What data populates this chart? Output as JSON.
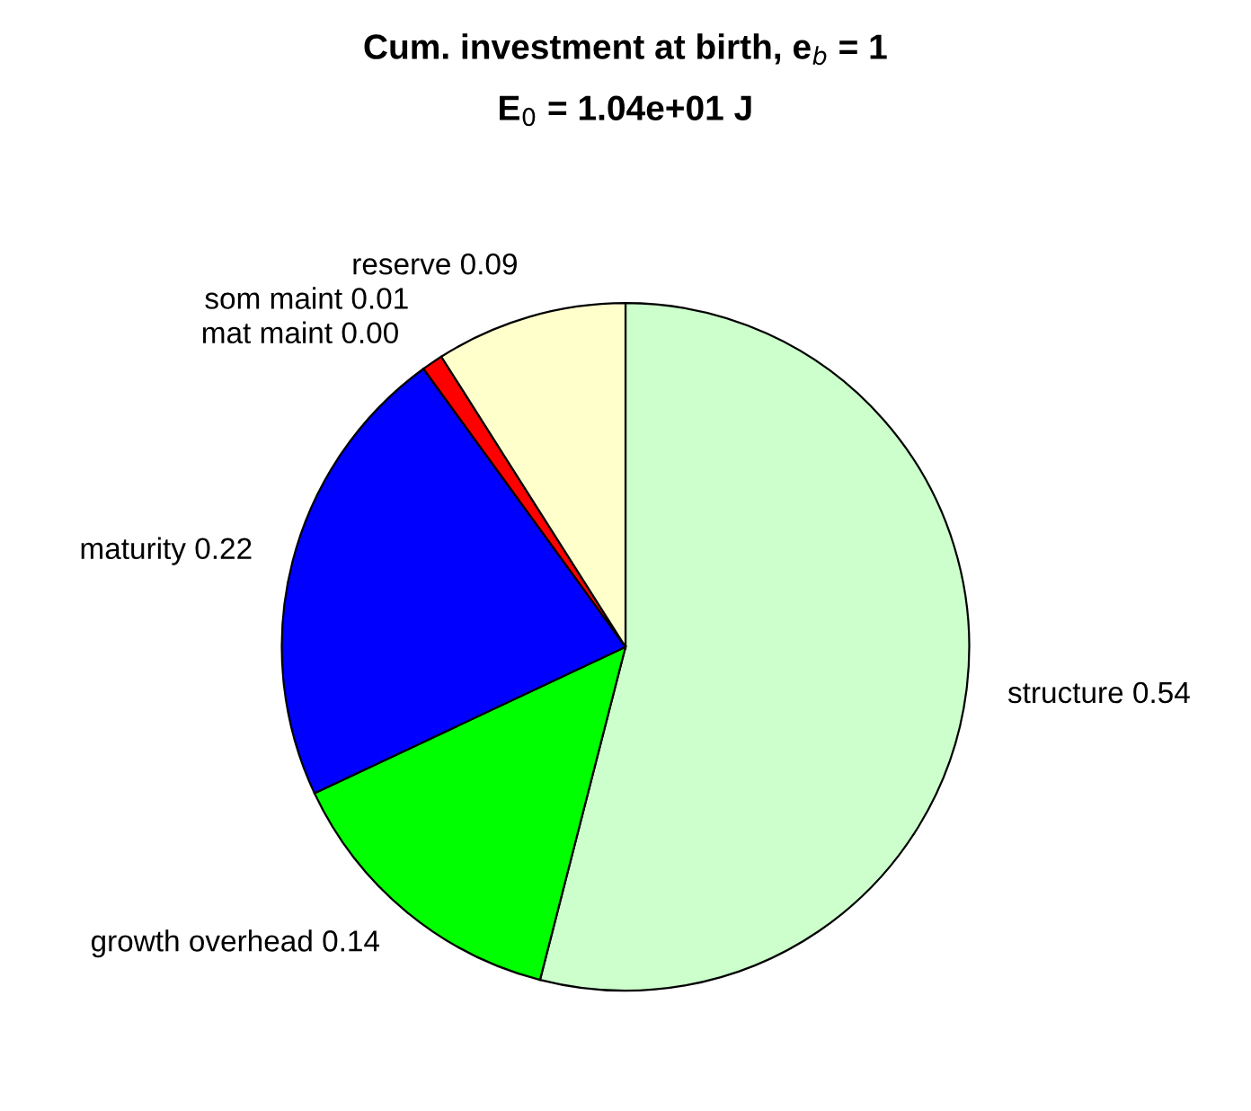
{
  "chart_data": {
    "type": "pie",
    "title": "Cum. investment at birth, e$_{b}$ = 1",
    "subtitle": "E$_{0}$ = 1.04e+01 J",
    "categories": [
      "structure",
      "growth overhead",
      "maturity",
      "mat maint",
      "som maint",
      "reserve"
    ],
    "values": [
      0.54,
      0.14,
      0.22,
      0.0,
      0.01,
      0.09
    ],
    "value_labels": [
      "0.54",
      "0.14",
      "0.22",
      "0.00",
      "0.01",
      "0.09"
    ],
    "colors": [
      "#ccffcc",
      "#00ff00",
      "#0000ff",
      "#ff00ff",
      "#ff0000",
      "#ffffcc"
    ],
    "legend": false
  }
}
